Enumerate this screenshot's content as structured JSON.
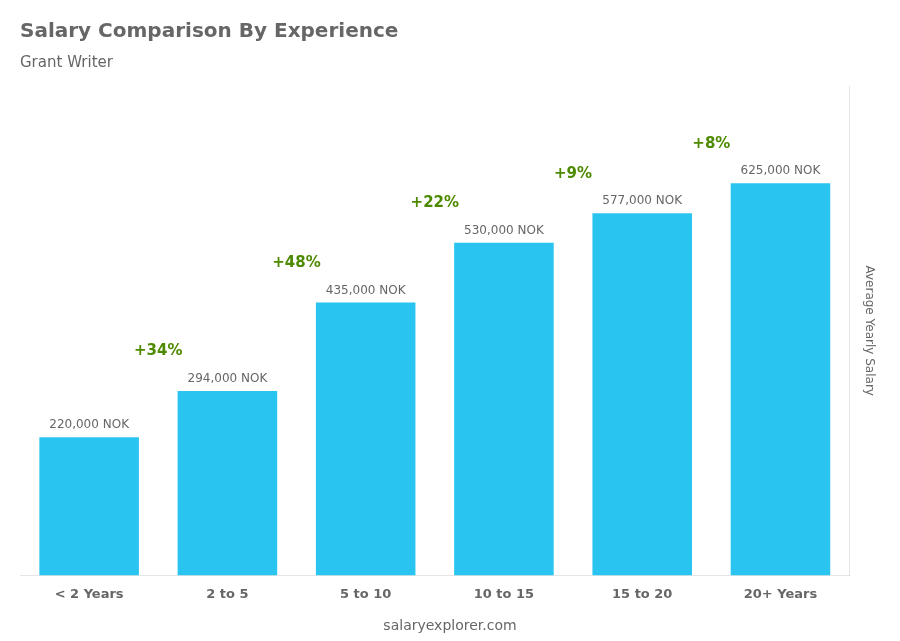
{
  "chart_data": {
    "type": "bar",
    "title": "Salary Comparison By Experience",
    "subtitle": "Grant Writer",
    "categories": [
      "< 2 Years",
      "2 to 5",
      "5 to 10",
      "10 to 15",
      "15 to 20",
      "20+ Years"
    ],
    "values": [
      220000,
      294000,
      435000,
      530000,
      577000,
      625000
    ],
    "value_labels": [
      "220,000 NOK",
      "294,000 NOK",
      "435,000 NOK",
      "530,000 NOK",
      "577,000 NOK",
      "625,000 NOK"
    ],
    "data_labels": true,
    "annotations": [
      "+34%",
      "+48%",
      "+22%",
      "+9%",
      "+8%"
    ],
    "ylabel": "Average Yearly Salary",
    "footer": "salaryexplorer.com",
    "color": "#29c4f0",
    "ylim": [
      0,
      780000
    ],
    "tick_labels": "x",
    "grid": false
  }
}
